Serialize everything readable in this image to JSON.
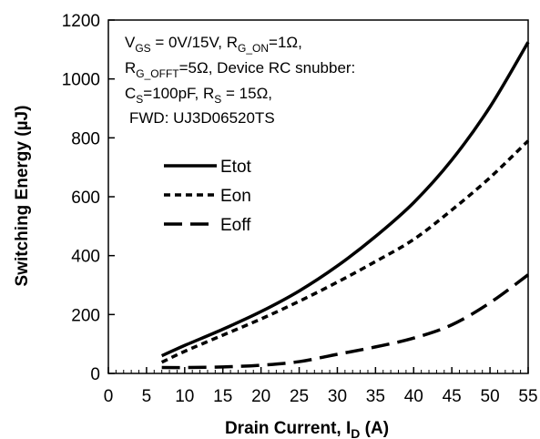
{
  "chart_data": {
    "type": "line",
    "title": "",
    "xlabel": "Drain Current, I",
    "xlabel_sub": "D",
    "xlabel_unit": " (A)",
    "ylabel": "Switching Energy (µJ)",
    "xlim": [
      0,
      55
    ],
    "ylim": [
      0,
      1200
    ],
    "xticks": [
      0,
      5,
      10,
      15,
      20,
      25,
      30,
      35,
      40,
      45,
      50,
      55
    ],
    "yticks": [
      0,
      200,
      400,
      600,
      800,
      1000,
      1200
    ],
    "grid": false,
    "legend_position": "upper-left",
    "annotation": {
      "line1": {
        "p1": "V",
        "s1": "GS",
        "p2": " = 0V/15V, R",
        "s2": "G_ON",
        "p3": "=1Ω,"
      },
      "line2": {
        "p1": "R",
        "s1": "G_OFFT",
        "p2": "=5Ω, Device RC snubber:"
      },
      "line3": {
        "p1": "C",
        "s1": "S",
        "p2": "=100pF,   R",
        "s2": "S",
        "p3": " = 15Ω,"
      },
      "line4": {
        "p1": "FWD: UJ3D06520TS"
      }
    },
    "series": [
      {
        "name": "Etot",
        "style": "solid",
        "x": [
          7,
          10,
          15,
          20,
          25,
          30,
          35,
          40,
          45,
          50,
          55
        ],
        "y": [
          60,
          95,
          150,
          210,
          280,
          365,
          465,
          580,
          725,
          905,
          1125
        ]
      },
      {
        "name": "Eon",
        "style": "short-dash",
        "x": [
          7,
          10,
          15,
          20,
          25,
          30,
          35,
          40,
          45,
          50,
          55
        ],
        "y": [
          38,
          75,
          130,
          185,
          245,
          310,
          380,
          455,
          555,
          665,
          790
        ]
      },
      {
        "name": "Eoff",
        "style": "long-dash",
        "x": [
          7,
          10,
          15,
          20,
          25,
          30,
          35,
          40,
          45,
          50,
          55
        ],
        "y": [
          20,
          20,
          22,
          28,
          40,
          65,
          90,
          120,
          165,
          240,
          335
        ]
      }
    ]
  }
}
